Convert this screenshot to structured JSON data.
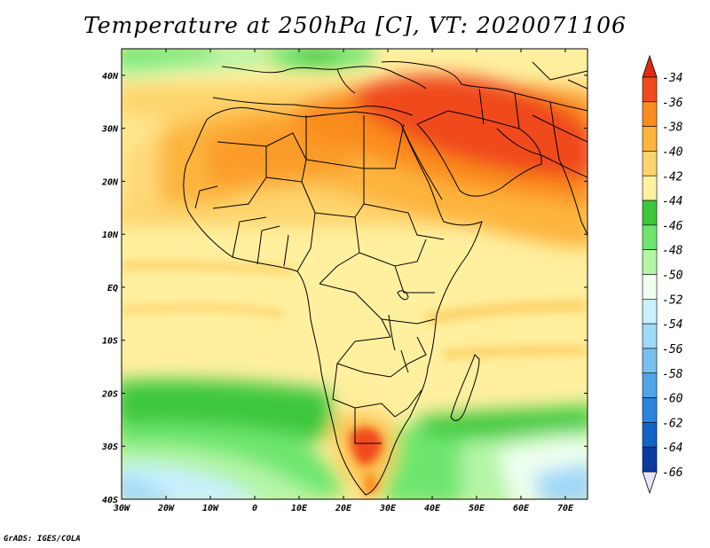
{
  "title": "Temperature at 250hPa [C], VT: 2020071106",
  "credit": "GrADS: IGES/COLA",
  "lat_ticks": [
    "40N",
    "30N",
    "20N",
    "10N",
    "EQ",
    "10S",
    "20S",
    "30S",
    "40S"
  ],
  "lon_ticks": [
    "30W",
    "20W",
    "10W",
    "0",
    "10E",
    "20E",
    "30E",
    "40E",
    "50E",
    "60E",
    "70E"
  ],
  "colorbar": {
    "labels": [
      "-34",
      "-36",
      "-38",
      "-40",
      "-42",
      "-44",
      "-46",
      "-48",
      "-50",
      "-52",
      "-54",
      "-56",
      "-58",
      "-60",
      "-62",
      "-64",
      "-66"
    ],
    "colors": [
      "#f04a1e",
      "#fa8c1e",
      "#fdb43c",
      "#fdd46c",
      "#fff0a0",
      "#3cc83c",
      "#6ee66e",
      "#b4f5a6",
      "#f0fff0",
      "#c8f0ff",
      "#a0d8f8",
      "#78c0f0",
      "#50a4e8",
      "#2a84de",
      "#1464c8",
      "#0a3ca0",
      "#0a1e6e"
    ],
    "top_color": "#e02c10",
    "bottom_color": "#e6e6fa"
  },
  "map_extent": {
    "lon": [
      -30,
      75
    ],
    "lat": [
      -40,
      45
    ]
  }
}
